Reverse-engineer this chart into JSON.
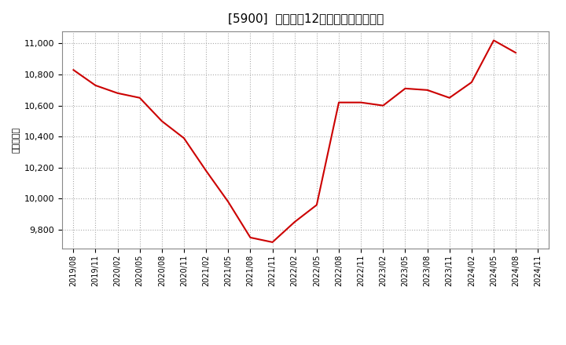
{
  "title": "[5900]  売上高の12か月移動合計の推移",
  "ylabel": "（百万円）",
  "line_color": "#cc0000",
  "background_color": "#ffffff",
  "plot_bg_color": "#ffffff",
  "grid_color": "#aaaaaa",
  "dates": [
    "2019/08",
    "2019/11",
    "2020/02",
    "2020/05",
    "2020/08",
    "2020/11",
    "2021/02",
    "2021/05",
    "2021/08",
    "2021/11",
    "2022/02",
    "2022/05",
    "2022/08",
    "2022/11",
    "2023/02",
    "2023/05",
    "2023/08",
    "2023/11",
    "2024/02",
    "2024/05",
    "2024/08",
    "2024/11"
  ],
  "values": [
    10830,
    10730,
    10680,
    10650,
    10500,
    10390,
    10180,
    9980,
    9750,
    9720,
    9850,
    9960,
    10620,
    10620,
    10600,
    10710,
    10700,
    10650,
    10750,
    11020,
    10940,
    null
  ],
  "yticks": [
    9800,
    10000,
    10200,
    10400,
    10600,
    10800,
    11000
  ],
  "ylim": [
    9680,
    11080
  ],
  "xtick_labels": [
    "2019/08",
    "2019/11",
    "2020/02",
    "2020/05",
    "2020/08",
    "2020/11",
    "2021/02",
    "2021/05",
    "2021/08",
    "2021/11",
    "2022/02",
    "2022/05",
    "2022/08",
    "2022/11",
    "2023/02",
    "2023/05",
    "2023/08",
    "2023/11",
    "2024/02",
    "2024/05",
    "2024/08",
    "2024/11"
  ],
  "title_fontsize": 11,
  "ylabel_fontsize": 8,
  "tick_fontsize": 8,
  "xtick_fontsize": 7
}
